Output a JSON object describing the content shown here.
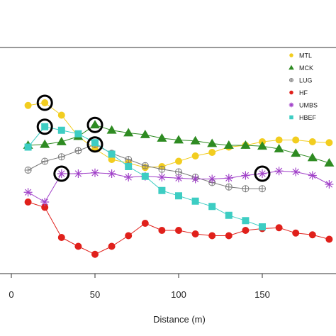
{
  "chart_data": {
    "type": "line",
    "xlabel": "Distance (m)",
    "ylabel": "",
    "xlim": [
      -6,
      193
    ],
    "ylim": [
      0,
      100
    ],
    "x_ticks": [
      0,
      50,
      100,
      150
    ],
    "legend_position": "top-right",
    "series": [
      {
        "name": "MTL",
        "color": "#f2cd1f",
        "marker": "circle",
        "x": [
          10,
          20,
          30,
          40,
          50,
          60,
          70,
          80,
          90,
          100,
          110,
          120,
          130,
          140,
          150,
          160,
          170,
          180,
          190
        ],
        "y": [
          84.5,
          86,
          79,
          67,
          60,
          54,
          52,
          49.5,
          50,
          53,
          56,
          58,
          61,
          62,
          64,
          65,
          65,
          64,
          63.5
        ]
      },
      {
        "name": "MCK",
        "color": "#2e8b22",
        "marker": "triangle",
        "x": [
          10,
          20,
          30,
          40,
          50,
          60,
          70,
          80,
          90,
          100,
          110,
          120,
          130,
          140,
          150,
          160,
          170,
          180,
          190
        ],
        "y": [
          62,
          62.5,
          64,
          67,
          73.5,
          70.5,
          69,
          68,
          66,
          65,
          64.5,
          63,
          62,
          62,
          61.5,
          60,
          57.5,
          55,
          52
        ]
      },
      {
        "name": "LUG",
        "color": "#7a7a7a",
        "marker": "circle-plus",
        "x": [
          10,
          20,
          30,
          40,
          50,
          60,
          70,
          80,
          90,
          100,
          110,
          120,
          130,
          140,
          150
        ],
        "y": [
          48,
          53,
          55.5,
          59,
          62.5,
          57.5,
          54,
          50.5,
          48.5,
          47,
          44,
          41,
          38.5,
          37.5,
          37.5
        ]
      },
      {
        "name": "HF",
        "color": "#e0201b",
        "marker": "circle",
        "x": [
          10,
          20,
          30,
          40,
          50,
          60,
          70,
          80,
          90,
          100,
          110,
          120,
          130,
          140,
          150,
          160,
          170,
          180,
          190
        ],
        "y": [
          30,
          27,
          10,
          5,
          0.5,
          5,
          11,
          18,
          14,
          14,
          12,
          11,
          11,
          14,
          15,
          15.5,
          12.5,
          11.5,
          9
        ]
      },
      {
        "name": "UMBS",
        "color": "#a040c8",
        "marker": "star",
        "x": [
          10,
          20,
          30,
          40,
          50,
          60,
          70,
          80,
          90,
          100,
          110,
          120,
          130,
          140,
          150,
          160,
          170,
          180,
          190
        ],
        "y": [
          35.5,
          30,
          46,
          46,
          46.5,
          46,
          44,
          44.5,
          44,
          43.5,
          43,
          43,
          43.5,
          45,
          46,
          47.5,
          47,
          45,
          40
        ]
      },
      {
        "name": "HBEF",
        "color": "#3dcdc3",
        "marker": "square",
        "x": [
          10,
          20,
          30,
          40,
          50,
          60,
          70,
          80,
          90,
          100,
          110,
          120,
          130,
          140,
          150
        ],
        "y": [
          61,
          72.5,
          70.5,
          68.5,
          63.5,
          57,
          50,
          44.5,
          36.5,
          33.5,
          30.5,
          27.5,
          22.5,
          19.5,
          16
        ]
      }
    ],
    "highlighted_points": [
      {
        "series": "MTL",
        "x": 20,
        "y": 86
      },
      {
        "series": "HBEF",
        "x": 20,
        "y": 72.5
      },
      {
        "series": "MCK",
        "x": 50,
        "y": 73.5
      },
      {
        "series": "LUG",
        "x": 50,
        "y": 62.5
      },
      {
        "series": "UMBS",
        "x": 30,
        "y": 46
      },
      {
        "series": "UMBS",
        "x": 150,
        "y": 46
      }
    ]
  }
}
